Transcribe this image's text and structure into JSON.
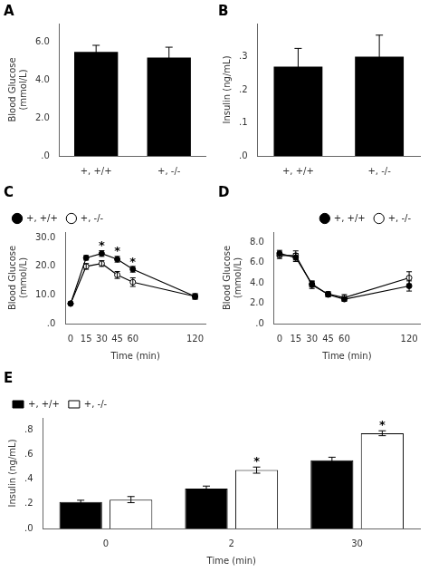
{
  "chart_data": [
    {
      "type": "bar",
      "title": "A",
      "categories": [
        "+, +/+",
        "+, -/-"
      ],
      "values": [
        5.5,
        5.2
      ],
      "errors": [
        0.35,
        0.55
      ],
      "color": "#000000",
      "ylabel": "Blood Glucose\n(mmol/L)",
      "ylim": [
        0,
        7
      ],
      "yticks": [
        {
          "value": 0,
          "label": ".0"
        },
        {
          "value": 2.0,
          "label": "2.0"
        },
        {
          "value": 4.0,
          "label": "4.0"
        },
        {
          "value": 6.0,
          "label": "6.0"
        }
      ],
      "grid": false
    },
    {
      "type": "bar",
      "title": "B",
      "categories": [
        "+, +/+",
        "+, -/-"
      ],
      "values": [
        0.27,
        0.3
      ],
      "errors": [
        0.055,
        0.065
      ],
      "color": "#000000",
      "ylabel": "Insulin (ng/mL)",
      "ylim": [
        0,
        0.4
      ],
      "yticks": [
        {
          "value": 0,
          "label": ".0"
        },
        {
          "value": 0.1,
          "label": ".1"
        },
        {
          "value": 0.2,
          "label": ".2"
        },
        {
          "value": 0.3,
          "label": ".3"
        }
      ],
      "grid": false
    },
    {
      "type": "line",
      "title": "C",
      "x": [
        0,
        15,
        30,
        45,
        60,
        120
      ],
      "series": [
        {
          "name": "+, +/+",
          "color": "#000000",
          "marker": "filled_circle",
          "values": [
            7.0,
            23.0,
            24.5,
            22.5,
            19.0,
            9.5
          ],
          "errors": [
            0.5,
            0.8,
            1.0,
            1.0,
            1.0,
            0.8
          ]
        },
        {
          "name": "+, -/-",
          "color": "#000000",
          "marker": "open_circle",
          "values": [
            7.0,
            20.0,
            21.0,
            17.0,
            14.5,
            9.5
          ],
          "errors": [
            0.5,
            1.0,
            1.0,
            1.2,
            1.5,
            1.0
          ]
        }
      ],
      "xlabel": "Time (min)",
      "ylabel": "Blood Glucose\n(mmol/L)",
      "xlim": [
        -5,
        130
      ],
      "xticks": [
        0,
        15,
        30,
        45,
        60,
        120
      ],
      "ylim": [
        0,
        32
      ],
      "yticks": [
        {
          "value": 0,
          "label": ".0"
        },
        {
          "value": 10.0,
          "label": "10.0"
        },
        {
          "value": 20.0,
          "label": "20.0"
        },
        {
          "value": 30.0,
          "label": "30.0"
        }
      ],
      "legend": "upper left",
      "grid": false,
      "annotations": [
        {
          "text": "*",
          "x": 30,
          "y": 26.2
        },
        {
          "text": "*",
          "x": 45,
          "y": 24.2
        },
        {
          "text": "*",
          "x": 60,
          "y": 20.7
        }
      ]
    },
    {
      "type": "line",
      "title": "D",
      "x": [
        0,
        15,
        30,
        45,
        60,
        120
      ],
      "series": [
        {
          "name": "+, +/+",
          "color": "#000000",
          "marker": "filled_circle",
          "values": [
            6.9,
            6.5,
            3.9,
            2.85,
            2.4,
            3.7
          ],
          "errors": [
            0.3,
            0.4,
            0.3,
            0.2,
            0.2,
            0.5
          ]
        },
        {
          "name": "+, -/-",
          "color": "#000000",
          "marker": "open_circle",
          "values": [
            6.7,
            6.7,
            3.8,
            2.9,
            2.55,
            4.5
          ],
          "errors": [
            0.3,
            0.45,
            0.35,
            0.25,
            0.3,
            0.6
          ]
        }
      ],
      "xlabel": "Time (min)",
      "ylabel": "Blood Glucose\n(mmol/L)",
      "xlim": [
        -5,
        130
      ],
      "xticks": [
        0,
        15,
        30,
        45,
        60,
        120
      ],
      "ylim": [
        0,
        9
      ],
      "yticks": [
        {
          "value": 0,
          "label": ".0"
        },
        {
          "value": 2.0,
          "label": "2.0"
        },
        {
          "value": 4.0,
          "label": "4.0"
        },
        {
          "value": 6.0,
          "label": "6.0"
        },
        {
          "value": 8.0,
          "label": "8.0"
        }
      ],
      "legend": "upper right",
      "grid": false
    },
    {
      "type": "bar",
      "title": "E",
      "categories": [
        "0",
        "2",
        "30"
      ],
      "series": [
        {
          "name": "+, +/+",
          "color": "#000000",
          "values": [
            0.215,
            0.325,
            0.555
          ],
          "errors": [
            0.015,
            0.02,
            0.025
          ]
        },
        {
          "name": "+, -/-",
          "color": "#ffffff",
          "values": [
            0.235,
            0.475,
            0.775
          ],
          "errors": [
            0.025,
            0.025,
            0.02
          ]
        }
      ],
      "xlabel": "Time (min)",
      "ylabel": "Insulin (ng/mL)",
      "ylim": [
        0,
        0.9
      ],
      "yticks": [
        {
          "value": 0,
          "label": ".0"
        },
        {
          "value": 0.2,
          "label": ".2"
        },
        {
          "value": 0.4,
          "label": ".4"
        },
        {
          "value": 0.6,
          "label": ".6"
        },
        {
          "value": 0.8,
          "label": ".8"
        }
      ],
      "legend": "upper left",
      "grid": false,
      "annotations": [
        {
          "text": "*",
          "x": "2",
          "series": "+, -/-",
          "y": 0.525
        },
        {
          "text": "*",
          "x": "30",
          "series": "+, -/-",
          "y": 0.82
        }
      ]
    }
  ]
}
